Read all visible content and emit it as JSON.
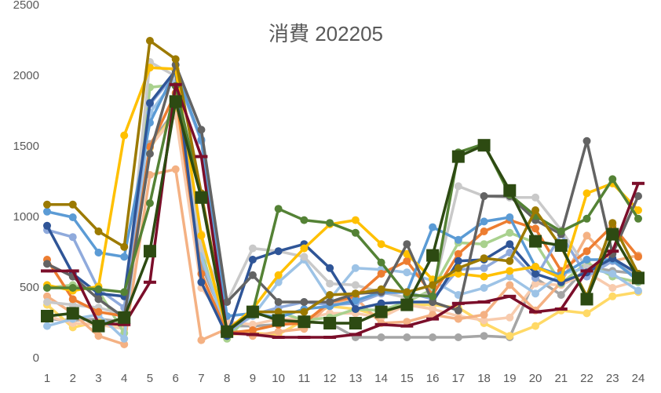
{
  "chart_data": {
    "type": "line",
    "title": "消費 202205",
    "categories": [
      1,
      2,
      3,
      4,
      5,
      6,
      7,
      8,
      9,
      10,
      11,
      12,
      13,
      14,
      15,
      16,
      17,
      18,
      19,
      20,
      21,
      22,
      23,
      24
    ],
    "ylim": [
      0,
      2500
    ],
    "yticks": [
      0,
      500,
      1000,
      1500,
      2000,
      2500
    ],
    "grid": false,
    "series": [
      {
        "color": "#a5a5a5",
        "marker": "circle",
        "values": [
          280,
          270,
          280,
          260,
          1520,
          1760,
          660,
          230,
          230,
          240,
          260,
          250,
          150,
          150,
          150,
          150,
          150,
          160,
          150,
          570,
          450,
          650,
          620,
          600
        ]
      },
      {
        "color": "#ffd966",
        "marker": "circle",
        "values": [
          380,
          220,
          260,
          230,
          1490,
          1750,
          880,
          170,
          180,
          170,
          270,
          370,
          350,
          300,
          380,
          380,
          360,
          250,
          160,
          230,
          340,
          320,
          440,
          470
        ]
      },
      {
        "color": "#f8cbad",
        "marker": "circle",
        "values": [
          300,
          250,
          240,
          210,
          1500,
          1720,
          500,
          260,
          240,
          280,
          280,
          320,
          320,
          290,
          380,
          350,
          300,
          270,
          290,
          530,
          520,
          610,
          500,
          550
        ]
      },
      {
        "color": "#f4b183",
        "marker": "circle",
        "values": [
          440,
          320,
          160,
          100,
          1300,
          1340,
          130,
          210,
          160,
          190,
          210,
          390,
          430,
          250,
          260,
          310,
          280,
          310,
          520,
          340,
          540,
          870,
          690,
          730
        ]
      },
      {
        "color": "#a9d18e",
        "marker": "circle",
        "values": [
          500,
          520,
          480,
          180,
          1920,
          1940,
          770,
          140,
          330,
          330,
          270,
          290,
          350,
          340,
          400,
          490,
          820,
          810,
          890,
          820,
          530,
          680,
          580,
          540
        ]
      },
      {
        "color": "#9dc3e6",
        "marker": "circle",
        "values": [
          230,
          280,
          310,
          140,
          1740,
          1980,
          720,
          190,
          300,
          540,
          700,
          420,
          640,
          630,
          610,
          550,
          450,
          500,
          580,
          460,
          600,
          640,
          600,
          480
        ]
      },
      {
        "color": "#c9c9c9",
        "marker": "circle",
        "values": [
          400,
          380,
          360,
          310,
          2100,
          2000,
          780,
          400,
          780,
          760,
          720,
          530,
          520,
          470,
          430,
          460,
          1220,
          1150,
          1140,
          1140,
          910,
          640,
          700,
          590
        ]
      },
      {
        "color": "#ed7d31",
        "marker": "circle",
        "values": [
          700,
          420,
          330,
          300,
          1500,
          1880,
          600,
          180,
          200,
          240,
          250,
          400,
          440,
          600,
          690,
          450,
          740,
          900,
          980,
          920,
          620,
          760,
          940,
          720
        ]
      },
      {
        "color": "#8faadc",
        "marker": "circle",
        "values": [
          910,
          860,
          490,
          360,
          1800,
          2020,
          1540,
          180,
          310,
          360,
          400,
          380,
          390,
          460,
          470,
          420,
          630,
          640,
          750,
          570,
          880,
          580,
          690,
          560
        ]
      },
      {
        "color": "#5b9bd5",
        "marker": "circle",
        "values": [
          1040,
          1000,
          750,
          720,
          1670,
          2040,
          1550,
          300,
          320,
          290,
          350,
          370,
          410,
          470,
          470,
          930,
          840,
          970,
          1000,
          650,
          590,
          700,
          700,
          550
        ]
      },
      {
        "color": "#2f5597",
        "marker": "circle",
        "values": [
          940,
          600,
          460,
          440,
          1810,
          2040,
          540,
          160,
          700,
          760,
          810,
          640,
          350,
          390,
          400,
          400,
          690,
          700,
          810,
          600,
          540,
          610,
          710,
          600
        ]
      },
      {
        "color": "#ffc000",
        "marker": "circle",
        "values": [
          520,
          480,
          510,
          1580,
          2060,
          2050,
          870,
          200,
          350,
          590,
          780,
          950,
          980,
          810,
          740,
          560,
          600,
          580,
          620,
          650,
          570,
          1170,
          1240,
          1050
        ]
      },
      {
        "color": "#636363",
        "marker": "circle",
        "values": [
          670,
          580,
          420,
          290,
          1450,
          2080,
          1620,
          400,
          590,
          400,
          400,
          400,
          460,
          470,
          810,
          400,
          340,
          1150,
          1150,
          980,
          880,
          1540,
          740,
          1150
        ]
      },
      {
        "color": "#548235",
        "marker": "circle",
        "values": [
          500,
          500,
          490,
          470,
          1100,
          1930,
          1150,
          200,
          330,
          1060,
          980,
          960,
          890,
          680,
          450,
          440,
          1460,
          1520,
          1160,
          1010,
          900,
          990,
          1270,
          990
        ]
      },
      {
        "color": "#9c7a00",
        "marker": "circle",
        "values": [
          1090,
          1090,
          900,
          790,
          2250,
          2120,
          1170,
          200,
          330,
          330,
          330,
          450,
          460,
          490,
          470,
          520,
          640,
          710,
          690,
          1050,
          790,
          440,
          960,
          600
        ]
      },
      {
        "color": "#7b0e2a",
        "marker": "dash",
        "values": [
          620,
          620,
          250,
          240,
          540,
          1940,
          1430,
          180,
          170,
          150,
          150,
          150,
          170,
          240,
          230,
          280,
          390,
          400,
          440,
          330,
          350,
          620,
          760,
          1240
        ]
      },
      {
        "color": "#2d4a12",
        "marker": "square",
        "values": [
          300,
          320,
          230,
          290,
          760,
          1820,
          1140,
          190,
          330,
          270,
          260,
          250,
          250,
          330,
          380,
          730,
          1430,
          1510,
          1190,
          830,
          800,
          420,
          880,
          570
        ]
      }
    ]
  }
}
